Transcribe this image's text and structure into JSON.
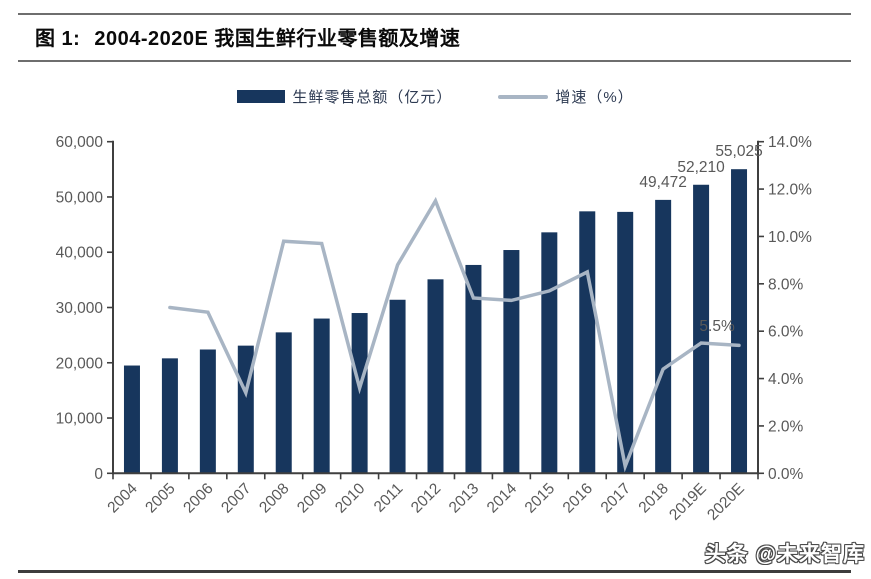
{
  "header": {
    "figure_label": "图 1:",
    "title": "2004-2020E 我国生鲜行业零售额及增速"
  },
  "legend": {
    "bar_label": "生鲜零售总额（亿元）",
    "line_label": "增速（%）"
  },
  "watermark": {
    "text": "头条 @未来智库"
  },
  "colors": {
    "bar": "#17365D",
    "line": "#A8B5C4",
    "axis": "#3f3f3f",
    "tick_label": "#595959",
    "data_label": "#595959",
    "header_rule": "#6e6e6e",
    "bottom_rule": "#3d3d3d"
  },
  "chart_data": {
    "type": "combo-bar-line",
    "title": "2004-2020E 我国生鲜行业零售额及增速",
    "categories": [
      "2004",
      "2005",
      "2006",
      "2007",
      "2008",
      "2009",
      "2010",
      "2011",
      "2012",
      "2013",
      "2014",
      "2015",
      "2016",
      "2017",
      "2018",
      "2019E",
      "2020E"
    ],
    "series": [
      {
        "name": "生鲜零售总额（亿元）",
        "type": "bar",
        "axis": "left",
        "values": [
          19500,
          20800,
          22400,
          23100,
          25500,
          28000,
          29000,
          31400,
          35100,
          37700,
          40400,
          43600,
          47400,
          47300,
          49472,
          52210,
          55025
        ]
      },
      {
        "name": "增速（%）",
        "type": "line",
        "axis": "right",
        "values": [
          null,
          7.0,
          6.8,
          3.4,
          9.8,
          9.7,
          3.6,
          8.8,
          11.5,
          7.4,
          7.3,
          7.7,
          8.5,
          0.3,
          4.4,
          5.5,
          5.4
        ]
      }
    ],
    "left_axis": {
      "min": 0,
      "max": 60000,
      "step": 10000,
      "tick_labels": [
        "0",
        "10,000",
        "20,000",
        "30,000",
        "40,000",
        "50,000",
        "60,000"
      ]
    },
    "right_axis": {
      "min": 0,
      "max": 14,
      "step": 2,
      "tick_labels": [
        "0.0%",
        "2.0%",
        "4.0%",
        "6.0%",
        "8.0%",
        "10.0%",
        "12.0%",
        "14.0%"
      ]
    },
    "annotations": [
      {
        "type": "bar_label",
        "category": "2018",
        "text": "49,472"
      },
      {
        "type": "bar_label",
        "category": "2019E",
        "text": "52,210"
      },
      {
        "type": "bar_label",
        "category": "2020E",
        "text": "55,025"
      },
      {
        "type": "line_label",
        "category": "2019E",
        "text": "5.5%"
      }
    ],
    "legend_position": "top",
    "grid": false
  }
}
